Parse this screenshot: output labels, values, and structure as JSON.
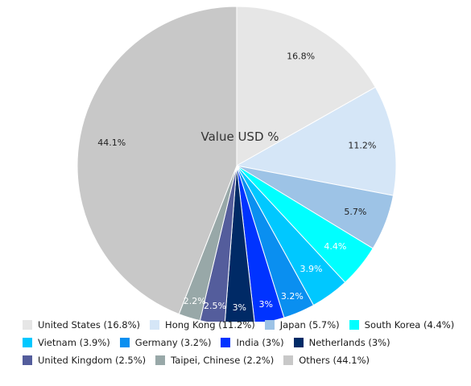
{
  "chart_data": {
    "type": "pie",
    "title": "Value USD %",
    "slices": [
      {
        "label": "United States",
        "value": 16.8,
        "display": "16.8%",
        "legend": "United States (16.8%)",
        "color": "#e6e6e6",
        "text_color": "#222222"
      },
      {
        "label": "Hong Kong",
        "value": 11.2,
        "display": "11.2%",
        "legend": "Hong Kong (11.2%)",
        "color": "#d5e6f7",
        "text_color": "#222222"
      },
      {
        "label": "Japan",
        "value": 5.7,
        "display": "5.7%",
        "legend": "Japan (5.7%)",
        "color": "#9dc3e6",
        "text_color": "#222222"
      },
      {
        "label": "South Korea",
        "value": 4.4,
        "display": "4.4%",
        "legend": "South Korea (4.4%)",
        "color": "#00ffff",
        "text_color": "#ffffff"
      },
      {
        "label": "Vietnam",
        "value": 3.9,
        "display": "3.9%",
        "legend": "Vietnam (3.9%)",
        "color": "#00c8ff",
        "text_color": "#ffffff"
      },
      {
        "label": "Germany",
        "value": 3.2,
        "display": "3.2%",
        "legend": "Germany (3.2%)",
        "color": "#0a8ff0",
        "text_color": "#ffffff"
      },
      {
        "label": "India",
        "value": 3,
        "display": "3%",
        "legend": "India (3%)",
        "color": "#0033ff",
        "text_color": "#ffffff"
      },
      {
        "label": "Netherlands",
        "value": 3,
        "display": "3%",
        "legend": "Netherlands (3%)",
        "color": "#002a66",
        "text_color": "#ffffff"
      },
      {
        "label": "United Kingdom",
        "value": 2.5,
        "display": "2.5%",
        "legend": "United Kingdom (2.5%)",
        "color": "#545d9c",
        "text_color": "#ffffff"
      },
      {
        "label": "Taipei, Chinese",
        "value": 2.2,
        "display": "2.2%",
        "legend": "Taipei, Chinese (2.2%)",
        "color": "#98a8a8",
        "text_color": "#ffffff"
      },
      {
        "label": "Others",
        "value": 44.1,
        "display": "44.1%",
        "legend": "Others (44.1%)",
        "color": "#c8c8c8",
        "text_color": "#222222"
      }
    ],
    "legend_position": "bottom"
  }
}
